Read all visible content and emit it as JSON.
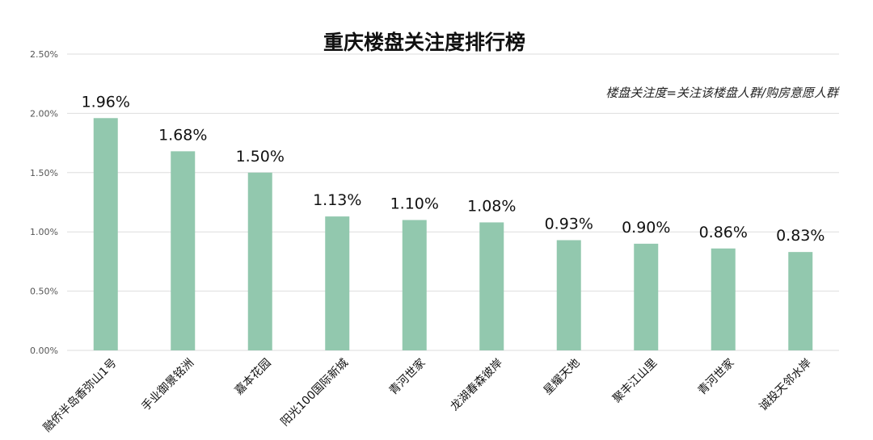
{
  "chart_data": {
    "type": "bar",
    "title": "重庆楼盘关注度排行榜",
    "annotation": "楼盘关注度=关注该楼盘人群/购房意愿人群",
    "categories": [
      "融侨半岛香弥山1号",
      "手业御景铭洲",
      "嘉本花园",
      "阳光100国际新城",
      "青河世家",
      "龙湖春森彼岸",
      "星耀天地",
      "聚丰江山里",
      "青河世家",
      "诚投天邻水岸"
    ],
    "values": [
      1.96,
      1.68,
      1.5,
      1.13,
      1.1,
      1.08,
      0.93,
      0.9,
      0.86,
      0.83
    ],
    "data_labels": [
      "1.96%",
      "1.68%",
      "1.50%",
      "1.13%",
      "1.10%",
      "1.08%",
      "0.93%",
      "0.90%",
      "0.86%",
      "0.83%"
    ],
    "ylim": [
      0,
      2.5
    ],
    "yticks": [
      "0.00%",
      "0.50%",
      "1.00%",
      "1.50%",
      "2.00%",
      "2.50%"
    ],
    "xlabel": "",
    "ylabel": "",
    "grid": true,
    "legend": "none",
    "bar_color": "#92c8ae",
    "grid_color": "#dddddd"
  }
}
